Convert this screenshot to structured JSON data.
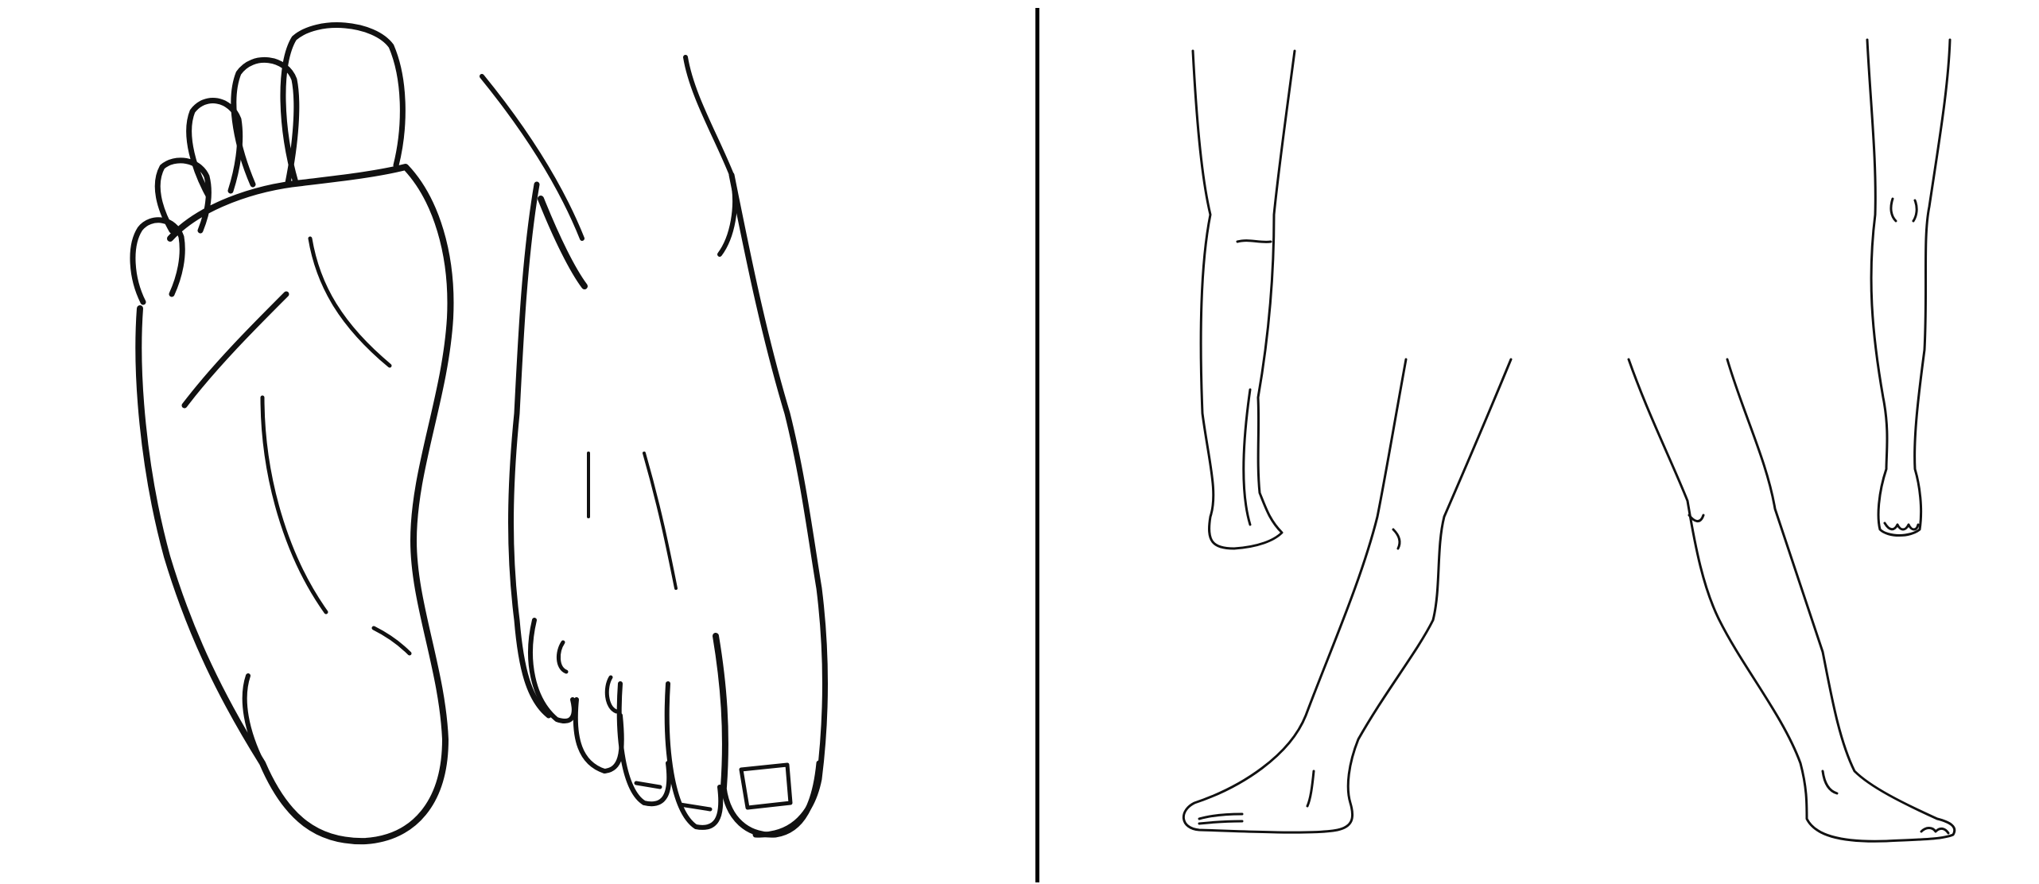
{
  "colors": {
    "background": "#ffffff",
    "ink": "#111111",
    "divider": "#000000"
  },
  "left_panel": {
    "figures": [
      "foot-sole",
      "foot-top"
    ]
  },
  "right_panel": {
    "figures": [
      "lower-leg-left",
      "lower-leg-right",
      "legs-standing"
    ]
  }
}
